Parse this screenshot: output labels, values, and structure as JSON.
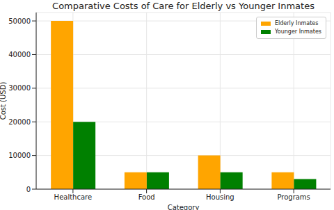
{
  "chart_data": {
    "type": "bar",
    "title": "Comparative Costs of Care for Elderly vs Younger Inmates",
    "x_label": "Category",
    "y_label": "Cost (USD)",
    "categories": [
      "Healthcare",
      "Food",
      "Housing",
      "Programs"
    ],
    "series": [
      {
        "name": "Elderly Inmates",
        "color": "#ffa500",
        "values": [
          50000,
          5000,
          10000,
          5000
        ]
      },
      {
        "name": "Younger Inmates",
        "color": "#008000",
        "values": [
          20000,
          5000,
          5000,
          3000
        ]
      }
    ],
    "ylim": [
      0,
      52500
    ],
    "yticks": [
      0,
      10000,
      20000,
      30000,
      40000,
      50000
    ],
    "grid": true,
    "legend": "upper right"
  }
}
